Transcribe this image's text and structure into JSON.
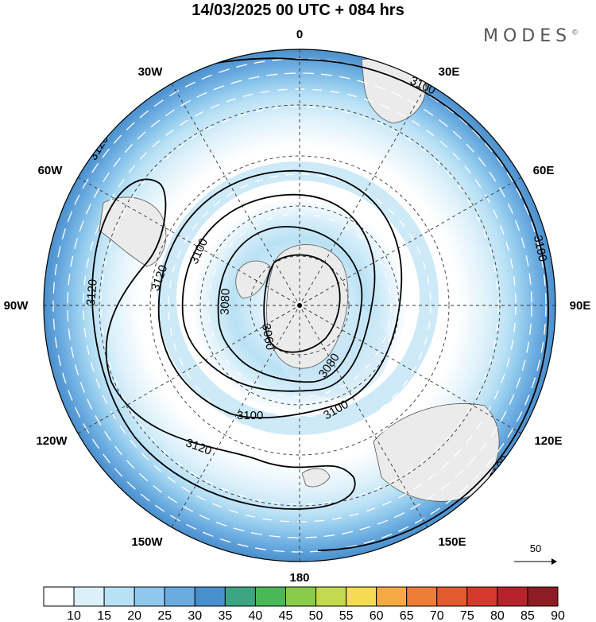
{
  "header": {
    "title": "14/03/2025  00 UTC  + 084 hrs",
    "brand": "MODES",
    "brand_mark": "©"
  },
  "map": {
    "longitude_labels": [
      "0",
      "30E",
      "60E",
      "90E",
      "120E",
      "150E",
      "180",
      "150W",
      "120W",
      "90W",
      "60W",
      "30W"
    ],
    "contour_labels": [
      "3060",
      "3080",
      "3080",
      "3100",
      "3100",
      "3100",
      "3100",
      "3100",
      "3100",
      "3120",
      "3120",
      "3120",
      "3120"
    ],
    "vector_reference": "50"
  },
  "colorbar": {
    "values": [
      "10",
      "15",
      "20",
      "25",
      "30",
      "35",
      "40",
      "45",
      "50",
      "55",
      "60",
      "65",
      "70",
      "75",
      "80",
      "85",
      "90"
    ],
    "colors": [
      "#ffffff",
      "#dcf0fa",
      "#b9e1f5",
      "#8fc8ec",
      "#6aabe0",
      "#4a8fcd",
      "#3ba584",
      "#4ab856",
      "#8acb4c",
      "#c3d94f",
      "#f5db52",
      "#f3aa45",
      "#ee7d37",
      "#e35a2f",
      "#d63a2c",
      "#b8232b",
      "#8e1c24"
    ]
  }
}
